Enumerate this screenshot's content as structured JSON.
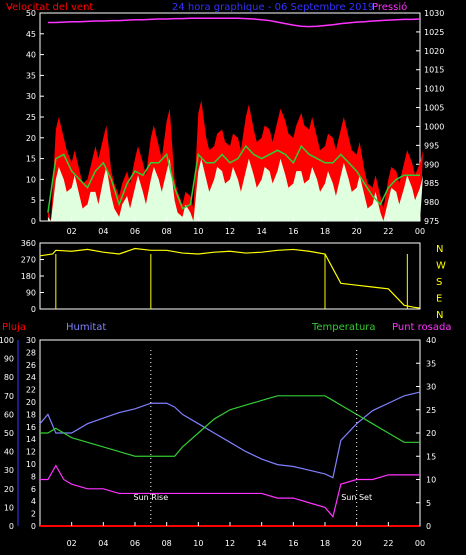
{
  "header": {
    "left": "Velocitat del vent",
    "center": "24 hora graphique - 06 Septembre 2019",
    "right": "Pressió"
  },
  "colors": {
    "red": "#ff0000",
    "blue": "#3333ff",
    "magenta": "#ff33ff",
    "green": "#33cc33",
    "yellow": "#ffff00",
    "white": "#ffffff",
    "wind_fill": "#dfffdf",
    "periwinkle": "#8080ff",
    "cyan": "#00ffff"
  },
  "x_ticks": [
    "02",
    "04",
    "06",
    "08",
    "10",
    "12",
    "14",
    "16",
    "18",
    "20",
    "22",
    "00"
  ],
  "sun": {
    "rise": "Sun Rise",
    "set": "Sun Set"
  },
  "direction_letters": [
    "N",
    "W",
    "S",
    "E",
    "N"
  ],
  "bottom_labels": {
    "pluja": "Pluja",
    "humitat": "Humitat",
    "temperatura": "Temperatura",
    "punt_rosada": "Punt rosada"
  },
  "chart_data": [
    {
      "type": "area",
      "panel": "wind",
      "title": "24 hora graphique - 06 Septembre 2019",
      "ylabel_left": "Velocitat del vent",
      "ylabel_right": "Pressió",
      "y_left_ticks": [
        "0",
        "5",
        "10",
        "15",
        "20",
        "25",
        "30",
        "35",
        "40",
        "45",
        "50"
      ],
      "y_right_ticks": [
        "975",
        "980",
        "985",
        "990",
        "995",
        "1000",
        "1005",
        "1010",
        "1015",
        "1020",
        "1025",
        "1030"
      ],
      "ylim_left": [
        0,
        50
      ],
      "ylim_right": [
        975,
        1030
      ],
      "x": [
        0.5,
        1,
        1.5,
        2,
        2.5,
        3,
        3.5,
        4,
        4.5,
        5,
        5.5,
        6,
        6.5,
        7,
        7.5,
        8,
        8.5,
        9,
        9.5,
        10,
        10.5,
        11,
        11.5,
        12,
        12.5,
        13,
        13.5,
        14,
        14.5,
        15,
        15.5,
        16,
        16.5,
        17,
        17.5,
        18,
        18.5,
        19,
        19.5,
        20,
        20.5,
        21,
        21.5,
        22,
        22.5,
        23,
        23.5,
        24
      ],
      "series": [
        {
          "name": "gust",
          "values": [
            3,
            22,
            20,
            14,
            12,
            10,
            18,
            20,
            12,
            6,
            12,
            15,
            14,
            20,
            18,
            24,
            10,
            4,
            6,
            26,
            20,
            18,
            22,
            18,
            20,
            25,
            22,
            20,
            22,
            24,
            24,
            20,
            26,
            22,
            20,
            18,
            20,
            22,
            20,
            16,
            12,
            8,
            6,
            10,
            12,
            14,
            14,
            14
          ]
        },
        {
          "name": "average",
          "values": [
            2,
            15,
            16,
            12,
            10,
            8,
            12,
            14,
            10,
            4,
            9,
            12,
            11,
            14,
            14,
            16,
            8,
            3,
            4,
            16,
            14,
            14,
            16,
            14,
            15,
            18,
            16,
            15,
            16,
            17,
            16,
            14,
            18,
            16,
            15,
            14,
            14,
            16,
            14,
            12,
            9,
            6,
            4,
            8,
            10,
            11,
            11,
            11
          ]
        },
        {
          "name": "min",
          "values": [
            1,
            10,
            10,
            8,
            6,
            4,
            7,
            10,
            6,
            1,
            6,
            8,
            7,
            10,
            10,
            12,
            5,
            1,
            2,
            12,
            10,
            10,
            12,
            10,
            10,
            12,
            11,
            10,
            12,
            12,
            11,
            9,
            12,
            10,
            10,
            9,
            9,
            11,
            10,
            8,
            6,
            4,
            2,
            5,
            7,
            8,
            8,
            8
          ]
        },
        {
          "name": "pressure",
          "values": [
            1027.5,
            1027.5,
            1027.6,
            1027.7,
            1027.7,
            1027.8,
            1027.9,
            1027.9,
            1028.0,
            1028.0,
            1028.1,
            1028.2,
            1028.2,
            1028.3,
            1028.4,
            1028.4,
            1028.5,
            1028.5,
            1028.6,
            1028.6,
            1028.6,
            1028.6,
            1028.6,
            1028.6,
            1028.6,
            1028.5,
            1028.4,
            1028.2,
            1028.0,
            1027.6,
            1027.2,
            1026.8,
            1026.5,
            1026.4,
            1026.5,
            1026.7,
            1026.9,
            1027.2,
            1027.4,
            1027.6,
            1027.7,
            1027.9,
            1028.0,
            1028.1,
            1028.2,
            1028.3,
            1028.3,
            1028.4
          ]
        }
      ]
    },
    {
      "type": "line",
      "panel": "direction",
      "y_ticks": [
        "360",
        "270",
        "180",
        "90",
        "0"
      ],
      "ylim": [
        0,
        360
      ],
      "y_right_ticks": [
        "N",
        "W",
        "S",
        "E",
        "N"
      ],
      "x": [
        0,
        0.8,
        1,
        2,
        3,
        4,
        5,
        6,
        7,
        8,
        9,
        10,
        11,
        12,
        13,
        14,
        15,
        16,
        17,
        18,
        19,
        20,
        21,
        22,
        23,
        23.6,
        24
      ],
      "series": [
        {
          "name": "direction",
          "values": [
            290,
            300,
            320,
            315,
            325,
            310,
            300,
            330,
            320,
            320,
            305,
            300,
            310,
            315,
            305,
            310,
            320,
            325,
            315,
            300,
            140,
            130,
            120,
            110,
            20,
            10,
            5
          ]
        }
      ]
    },
    {
      "type": "line",
      "panel": "climate",
      "y_axes": {
        "humitat": {
          "ticks": [
            "0",
            "10",
            "20",
            "30",
            "40",
            "50",
            "60",
            "70",
            "80",
            "90",
            "100"
          ],
          "lim": [
            0,
            100
          ]
        },
        "pluja": {
          "ticks": [
            "0",
            "2",
            "4",
            "6",
            "8",
            "10",
            "12",
            "14",
            "16",
            "18",
            "20",
            "22",
            "24",
            "26",
            "28",
            "30"
          ],
          "lim": [
            0,
            30
          ]
        },
        "temperatura": {
          "ticks": [
            "0",
            "5",
            "10",
            "15",
            "20",
            "25",
            "30",
            "35",
            "40"
          ],
          "lim": [
            0,
            40
          ]
        }
      },
      "x": [
        0,
        0.5,
        1,
        1.5,
        2,
        3,
        4,
        5,
        6,
        7,
        8,
        8.5,
        9,
        10,
        11,
        12,
        13,
        14,
        15,
        16,
        17,
        18,
        18.5,
        19,
        20,
        21,
        22,
        23,
        24
      ],
      "series": [
        {
          "name": "Humitat",
          "axis": "humitat",
          "values": [
            55,
            60,
            50,
            50,
            50,
            55,
            58,
            61,
            63,
            66,
            66,
            64,
            60,
            55,
            50,
            45,
            40,
            36,
            33,
            32,
            30,
            28,
            26,
            46,
            55,
            62,
            66,
            70,
            72
          ]
        },
        {
          "name": "Temperatura",
          "axis": "temperatura",
          "values": [
            20,
            20,
            21,
            20,
            19,
            18,
            17,
            16,
            15,
            15,
            15,
            15,
            17,
            20,
            23,
            25,
            26,
            27,
            28,
            28,
            28,
            28,
            27,
            26,
            24,
            22,
            20,
            18,
            18
          ]
        },
        {
          "name": "Punt rosada",
          "axis": "temperatura",
          "values": [
            10,
            10,
            13,
            10,
            9,
            8,
            8,
            7,
            7,
            7,
            7,
            7,
            7,
            7,
            7,
            7,
            7,
            7,
            6,
            6,
            5,
            4,
            2,
            9,
            10,
            10,
            11,
            11,
            11
          ]
        },
        {
          "name": "Pluja",
          "axis": "pluja",
          "values": [
            0,
            0,
            0,
            0,
            0,
            0,
            0,
            0,
            0,
            0,
            0,
            0,
            0,
            0,
            0,
            0,
            0,
            0,
            0,
            0,
            0,
            0,
            0,
            0,
            0,
            0,
            0,
            0,
            0
          ]
        }
      ],
      "sun": {
        "rise_hour": 7,
        "set_hour": 20
      }
    }
  ]
}
